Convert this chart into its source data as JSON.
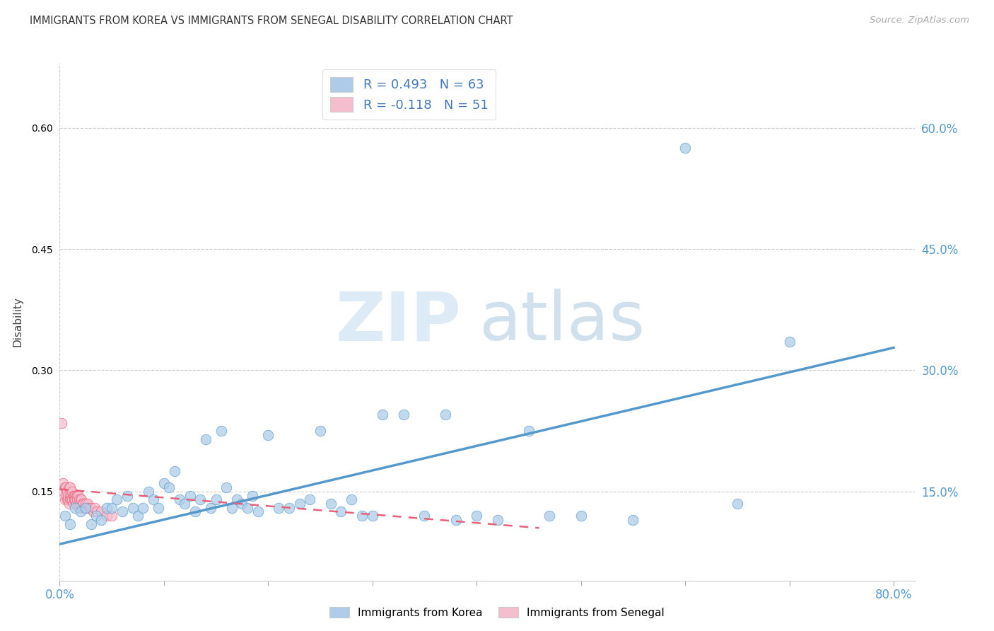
{
  "title": "IMMIGRANTS FROM KOREA VS IMMIGRANTS FROM SENEGAL DISABILITY CORRELATION CHART",
  "source": "Source: ZipAtlas.com",
  "ylabel": "Disability",
  "xlim": [
    0.0,
    0.82
  ],
  "ylim": [
    0.04,
    0.68
  ],
  "xticks": [
    0.0,
    0.1,
    0.2,
    0.3,
    0.4,
    0.5,
    0.6,
    0.7,
    0.8
  ],
  "xticklabels": [
    "0.0%",
    "",
    "",
    "",
    "",
    "",
    "",
    "",
    "80.0%"
  ],
  "yticks": [
    0.15,
    0.3,
    0.45,
    0.6
  ],
  "yticklabels": [
    "15.0%",
    "30.0%",
    "45.0%",
    "60.0%"
  ],
  "korea_color": "#aecce8",
  "korea_color_solid": "#5599cc",
  "senegal_color": "#f5bece",
  "senegal_color_solid": "#e8607a",
  "korea_R": 0.493,
  "korea_N": 63,
  "senegal_R": -0.118,
  "senegal_N": 51,
  "watermark_zip": "ZIP",
  "watermark_atlas": "atlas",
  "legend_korea": "Immigrants from Korea",
  "legend_senegal": "Immigrants from Senegal",
  "korea_line_x0": 0.0,
  "korea_line_y0": 0.085,
  "korea_line_x1": 0.8,
  "korea_line_y1": 0.328,
  "senegal_line_x0": 0.0,
  "senegal_line_y0": 0.153,
  "senegal_line_x1": 0.46,
  "senegal_line_y1": 0.105,
  "korea_x": [
    0.005,
    0.01,
    0.015,
    0.02,
    0.025,
    0.03,
    0.035,
    0.04,
    0.045,
    0.05,
    0.055,
    0.06,
    0.065,
    0.07,
    0.075,
    0.08,
    0.085,
    0.09,
    0.095,
    0.1,
    0.105,
    0.11,
    0.115,
    0.12,
    0.125,
    0.13,
    0.135,
    0.14,
    0.145,
    0.15,
    0.155,
    0.16,
    0.165,
    0.17,
    0.175,
    0.18,
    0.185,
    0.19,
    0.2,
    0.21,
    0.22,
    0.23,
    0.24,
    0.25,
    0.26,
    0.27,
    0.28,
    0.29,
    0.3,
    0.31,
    0.33,
    0.35,
    0.37,
    0.38,
    0.4,
    0.42,
    0.45,
    0.47,
    0.5,
    0.55,
    0.6,
    0.65,
    0.7
  ],
  "korea_y": [
    0.12,
    0.11,
    0.13,
    0.125,
    0.13,
    0.11,
    0.12,
    0.115,
    0.13,
    0.13,
    0.14,
    0.125,
    0.145,
    0.13,
    0.12,
    0.13,
    0.15,
    0.14,
    0.13,
    0.16,
    0.155,
    0.175,
    0.14,
    0.135,
    0.145,
    0.125,
    0.14,
    0.215,
    0.13,
    0.14,
    0.225,
    0.155,
    0.13,
    0.14,
    0.135,
    0.13,
    0.145,
    0.125,
    0.22,
    0.13,
    0.13,
    0.135,
    0.14,
    0.225,
    0.135,
    0.125,
    0.14,
    0.12,
    0.12,
    0.245,
    0.245,
    0.12,
    0.245,
    0.115,
    0.12,
    0.115,
    0.225,
    0.12,
    0.12,
    0.115,
    0.575,
    0.135,
    0.335
  ],
  "senegal_x": [
    0.002,
    0.003,
    0.004,
    0.005,
    0.005,
    0.006,
    0.006,
    0.007,
    0.007,
    0.008,
    0.008,
    0.009,
    0.009,
    0.01,
    0.01,
    0.01,
    0.011,
    0.011,
    0.012,
    0.012,
    0.013,
    0.013,
    0.014,
    0.014,
    0.015,
    0.015,
    0.016,
    0.016,
    0.017,
    0.017,
    0.018,
    0.018,
    0.019,
    0.019,
    0.02,
    0.02,
    0.021,
    0.022,
    0.023,
    0.024,
    0.025,
    0.026,
    0.027,
    0.028,
    0.03,
    0.032,
    0.034,
    0.036,
    0.04,
    0.045,
    0.05
  ],
  "senegal_y": [
    0.235,
    0.16,
    0.15,
    0.155,
    0.14,
    0.155,
    0.145,
    0.15,
    0.14,
    0.14,
    0.145,
    0.135,
    0.155,
    0.145,
    0.14,
    0.155,
    0.145,
    0.14,
    0.15,
    0.14,
    0.145,
    0.135,
    0.145,
    0.14,
    0.145,
    0.14,
    0.145,
    0.135,
    0.145,
    0.14,
    0.145,
    0.135,
    0.14,
    0.13,
    0.14,
    0.135,
    0.14,
    0.135,
    0.135,
    0.13,
    0.135,
    0.13,
    0.135,
    0.13,
    0.13,
    0.125,
    0.13,
    0.125,
    0.125,
    0.12,
    0.12
  ]
}
